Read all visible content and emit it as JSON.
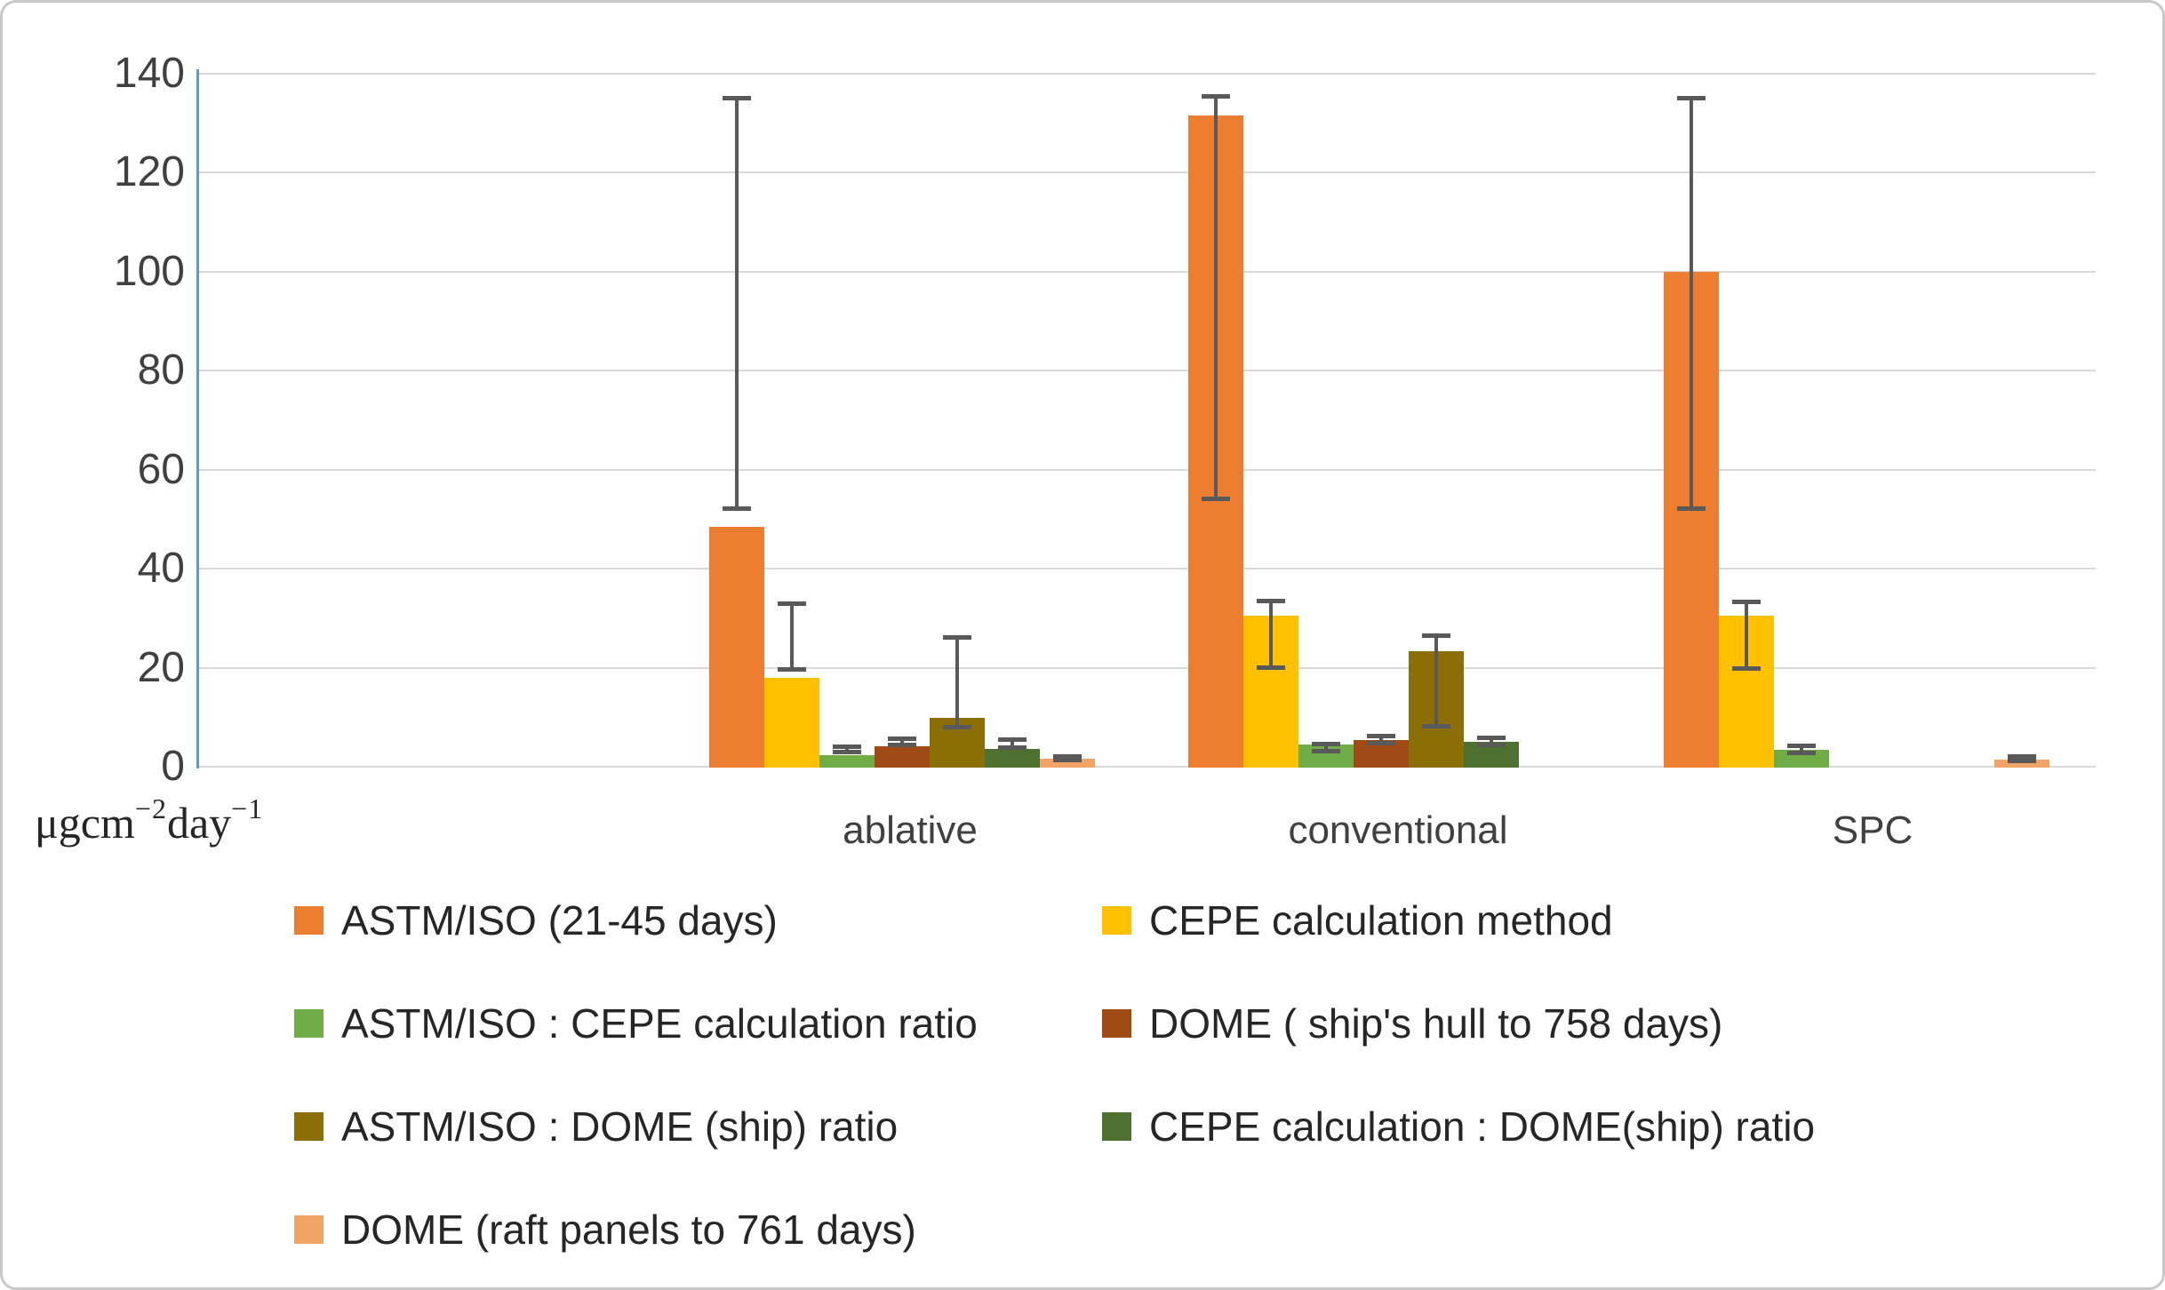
{
  "chart_data": {
    "type": "bar",
    "title": "",
    "unit_label": "μgcm−2day−1",
    "unit_label_parts": {
      "b1": "μgcm",
      "s1": "−2",
      "b2": "day",
      "s2": "−1"
    },
    "categories": [
      "ablative",
      "conventional",
      "SPC"
    ],
    "y_ticks": [
      0,
      20,
      40,
      60,
      80,
      100,
      120,
      140
    ],
    "ylim": [
      0,
      140
    ],
    "grid": true,
    "legend_position": "bottom",
    "error_bars": "custom min-max whiskers per bar",
    "series": [
      {
        "name": "ASTM/ISO (21-45 days)",
        "color": "#ED7D31",
        "values": [
          48.5,
          131.5,
          100
        ],
        "error_low": [
          52,
          54,
          52
        ],
        "error_high": [
          135,
          135.5,
          135
        ]
      },
      {
        "name": "CEPE calculation method",
        "color": "#FFC000",
        "values": [
          18,
          30.5,
          30.5
        ],
        "error_low": [
          19.5,
          20,
          19.8
        ],
        "error_high": [
          33,
          33.5,
          33.4
        ]
      },
      {
        "name": "ASTM/ISO : CEPE calculation ratio",
        "color": "#70AD47",
        "values": [
          2.3,
          4.4,
          3.4
        ],
        "error_low": [
          2.9,
          3.1,
          2.7
        ],
        "error_high": [
          4.1,
          4.6,
          4.3
        ]
      },
      {
        "name": "DOME ( ship's hull to 758 days)",
        "color": "#A04B16",
        "values": [
          4.1,
          5.4,
          0
        ],
        "error_low": [
          4.3,
          4.6,
          null
        ],
        "error_high": [
          5.8,
          6.3,
          null
        ]
      },
      {
        "name": "ASTM/ISO : DOME (ship) ratio",
        "color": "#8B6F06",
        "values": [
          9.9,
          23.3,
          0
        ],
        "error_low": [
          7.9,
          8.1,
          null
        ],
        "error_high": [
          26.2,
          26.6,
          null
        ]
      },
      {
        "name": "CEPE calculation : DOME(ship) ratio",
        "color": "#4D7130",
        "values": [
          3.6,
          5.0,
          0
        ],
        "error_low": [
          3.7,
          4.3,
          null
        ],
        "error_high": [
          5.5,
          6.0,
          null
        ]
      },
      {
        "name": "DOME (raft panels to 761 days)",
        "color": "#F0A467",
        "values": [
          1.6,
          0,
          1.4
        ],
        "error_low": [
          1.2,
          null,
          1.1
        ],
        "error_high": [
          2.2,
          null,
          2.1
        ]
      }
    ],
    "colors": {
      "axis_line": "#5B9BD5",
      "gridline": "#D9D9D9",
      "error_bar": "#595959",
      "tick_text": "#404040",
      "legend_text": "#262626",
      "frame_border": "#C8C8C8",
      "background": "#FFFFFF"
    }
  }
}
